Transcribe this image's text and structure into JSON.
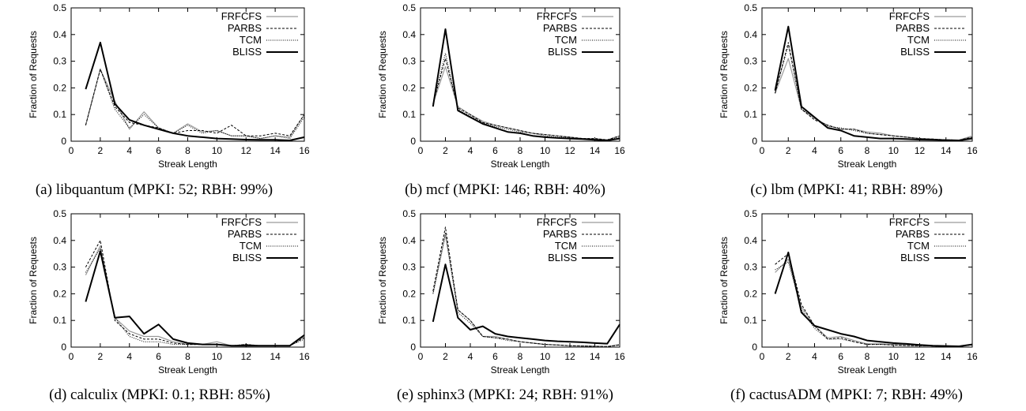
{
  "chart_data": [
    {
      "type": "line",
      "caption": "(a) libquantum (MPKI: 52; RBH: 99%)",
      "xlabel": "Streak Length",
      "ylabel": "Fraction of Requests",
      "xlim": [
        0,
        16
      ],
      "ylim": [
        0,
        0.5
      ],
      "xticks": [
        "0",
        "2",
        "4",
        "6",
        "8",
        "10",
        "12",
        "14",
        "16"
      ],
      "yticks": [
        "0",
        "0.1",
        "0.2",
        "0.3",
        "0.4",
        "0.5"
      ],
      "legend_position": "top-right",
      "grid": false,
      "x": [
        1,
        2,
        3,
        4,
        5,
        6,
        7,
        8,
        9,
        10,
        11,
        12,
        13,
        14,
        15,
        16
      ],
      "series": [
        {
          "name": "FRFCFS",
          "values": [
            0.06,
            0.27,
            0.15,
            0.045,
            0.11,
            0.05,
            0.03,
            0.065,
            0.035,
            0.04,
            0.02,
            0.02,
            0.01,
            0.02,
            0.015,
            0.1
          ]
        },
        {
          "name": "PARBS",
          "values": [
            0.06,
            0.27,
            0.13,
            0.07,
            0.06,
            0.05,
            0.03,
            0.04,
            0.04,
            0.03,
            0.06,
            0.02,
            0.02,
            0.03,
            0.02,
            0.1
          ]
        },
        {
          "name": "TCM",
          "values": [
            0.06,
            0.27,
            0.12,
            0.05,
            0.1,
            0.05,
            0.03,
            0.06,
            0.03,
            0.04,
            0.02,
            0.02,
            0.01,
            0.02,
            0.01,
            0.09
          ]
        },
        {
          "name": "BLISS",
          "values": [
            0.195,
            0.37,
            0.14,
            0.08,
            0.06,
            0.045,
            0.03,
            0.02,
            0.015,
            0.01,
            0.008,
            0.006,
            0.005,
            0.005,
            0.003,
            0.015
          ]
        }
      ]
    },
    {
      "type": "line",
      "caption": "(b) mcf (MPKI: 146; RBH: 40%)",
      "xlabel": "Streak Length",
      "ylabel": "Fraction of Requests",
      "xlim": [
        0,
        16
      ],
      "ylim": [
        0,
        0.5
      ],
      "xticks": [
        "0",
        "2",
        "4",
        "6",
        "8",
        "10",
        "12",
        "14",
        "16"
      ],
      "yticks": [
        "0",
        "0.1",
        "0.2",
        "0.3",
        "0.4",
        "0.5"
      ],
      "legend_position": "top-right",
      "grid": false,
      "x": [
        1,
        2,
        3,
        4,
        5,
        6,
        7,
        8,
        9,
        10,
        11,
        12,
        13,
        14,
        15,
        16
      ],
      "series": [
        {
          "name": "FRFCFS",
          "values": [
            0.14,
            0.28,
            0.13,
            0.1,
            0.075,
            0.06,
            0.05,
            0.04,
            0.03,
            0.025,
            0.02,
            0.015,
            0.01,
            0.01,
            0.005,
            0.02
          ]
        },
        {
          "name": "PARBS",
          "values": [
            0.14,
            0.31,
            0.125,
            0.1,
            0.07,
            0.06,
            0.05,
            0.04,
            0.03,
            0.025,
            0.02,
            0.015,
            0.01,
            0.01,
            0.005,
            0.02
          ]
        },
        {
          "name": "TCM",
          "values": [
            0.14,
            0.33,
            0.12,
            0.095,
            0.07,
            0.055,
            0.045,
            0.035,
            0.03,
            0.02,
            0.015,
            0.015,
            0.01,
            0.005,
            0.005,
            0.015
          ]
        },
        {
          "name": "BLISS",
          "values": [
            0.13,
            0.42,
            0.115,
            0.09,
            0.065,
            0.05,
            0.035,
            0.03,
            0.02,
            0.015,
            0.012,
            0.01,
            0.008,
            0.005,
            0.003,
            0.01
          ]
        }
      ]
    },
    {
      "type": "line",
      "caption": "(c) lbm (MPKI: 41; RBH: 89%)",
      "xlabel": "Streak Length",
      "ylabel": "Fraction of Requests",
      "xlim": [
        0,
        16
      ],
      "ylim": [
        0,
        0.5
      ],
      "xticks": [
        "0",
        "2",
        "4",
        "6",
        "8",
        "10",
        "12",
        "14",
        "16"
      ],
      "yticks": [
        "0",
        "0.1",
        "0.2",
        "0.3",
        "0.4",
        "0.5"
      ],
      "legend_position": "top-right",
      "grid": false,
      "x": [
        1,
        2,
        3,
        4,
        5,
        6,
        7,
        8,
        9,
        10,
        11,
        12,
        13,
        14,
        15,
        16
      ],
      "series": [
        {
          "name": "FRFCFS",
          "values": [
            0.18,
            0.31,
            0.12,
            0.085,
            0.06,
            0.045,
            0.045,
            0.035,
            0.03,
            0.02,
            0.015,
            0.01,
            0.008,
            0.005,
            0.004,
            0.02
          ]
        },
        {
          "name": "PARBS",
          "values": [
            0.18,
            0.37,
            0.12,
            0.08,
            0.06,
            0.045,
            0.045,
            0.03,
            0.025,
            0.02,
            0.015,
            0.01,
            0.008,
            0.005,
            0.004,
            0.015
          ]
        },
        {
          "name": "TCM",
          "values": [
            0.18,
            0.36,
            0.12,
            0.09,
            0.055,
            0.05,
            0.04,
            0.03,
            0.025,
            0.02,
            0.015,
            0.01,
            0.008,
            0.005,
            0.004,
            0.015
          ]
        },
        {
          "name": "BLISS",
          "values": [
            0.19,
            0.43,
            0.13,
            0.09,
            0.05,
            0.04,
            0.02,
            0.015,
            0.01,
            0.01,
            0.008,
            0.006,
            0.005,
            0.004,
            0.003,
            0.01
          ]
        }
      ]
    },
    {
      "type": "line",
      "caption": "(d) calculix (MPKI: 0.1; RBH: 85%)",
      "xlabel": "Streak Length",
      "ylabel": "Fraction of Requests",
      "xlim": [
        0,
        16
      ],
      "ylim": [
        0,
        0.5
      ],
      "xticks": [
        "0",
        "2",
        "4",
        "6",
        "8",
        "10",
        "12",
        "14",
        "16"
      ],
      "yticks": [
        "0",
        "0.1",
        "0.2",
        "0.3",
        "0.4",
        "0.5"
      ],
      "legend_position": "top-right",
      "grid": false,
      "x": [
        1,
        2,
        3,
        4,
        5,
        6,
        7,
        8,
        9,
        10,
        11,
        12,
        13,
        14,
        15,
        16
      ],
      "series": [
        {
          "name": "FRFCFS",
          "values": [
            0.27,
            0.38,
            0.11,
            0.06,
            0.04,
            0.04,
            0.02,
            0.01,
            0.01,
            0.02,
            0.005,
            0.01,
            0.005,
            0.005,
            0.005,
            0.04
          ]
        },
        {
          "name": "PARBS",
          "values": [
            0.3,
            0.4,
            0.1,
            0.05,
            0.03,
            0.03,
            0.015,
            0.01,
            0.01,
            0.01,
            0.005,
            0.01,
            0.005,
            0.005,
            0.005,
            0.035
          ]
        },
        {
          "name": "TCM",
          "values": [
            0.28,
            0.37,
            0.11,
            0.04,
            0.02,
            0.02,
            0.01,
            0.01,
            0.01,
            0.01,
            0.005,
            0.01,
            0.005,
            0.005,
            0.005,
            0.03
          ]
        },
        {
          "name": "BLISS",
          "values": [
            0.17,
            0.36,
            0.11,
            0.115,
            0.05,
            0.085,
            0.03,
            0.015,
            0.01,
            0.01,
            0.005,
            0.005,
            0.005,
            0.005,
            0.005,
            0.045
          ]
        }
      ]
    },
    {
      "type": "line",
      "caption": "(e) sphinx3 (MPKI: 24; RBH: 91%)",
      "xlabel": "Streak Length",
      "ylabel": "Fraction of Requests",
      "xlim": [
        0,
        16
      ],
      "ylim": [
        0,
        0.5
      ],
      "xticks": [
        "0",
        "2",
        "4",
        "6",
        "8",
        "10",
        "12",
        "14",
        "16"
      ],
      "yticks": [
        "0",
        "0.1",
        "0.2",
        "0.3",
        "0.4",
        "0.5"
      ],
      "legend_position": "top-right",
      "grid": false,
      "x": [
        1,
        2,
        3,
        4,
        5,
        6,
        7,
        8,
        9,
        10,
        11,
        12,
        13,
        14,
        15,
        16
      ],
      "series": [
        {
          "name": "FRFCFS",
          "values": [
            0.2,
            0.42,
            0.14,
            0.1,
            0.04,
            0.04,
            0.03,
            0.02,
            0.015,
            0.01,
            0.008,
            0.005,
            0.004,
            0.003,
            0.002,
            0.01
          ]
        },
        {
          "name": "PARBS",
          "values": [
            0.21,
            0.45,
            0.14,
            0.1,
            0.04,
            0.035,
            0.03,
            0.02,
            0.015,
            0.01,
            0.008,
            0.005,
            0.004,
            0.003,
            0.002,
            0.008
          ]
        },
        {
          "name": "TCM",
          "values": [
            0.2,
            0.43,
            0.13,
            0.09,
            0.04,
            0.035,
            0.025,
            0.02,
            0.015,
            0.01,
            0.008,
            0.005,
            0.004,
            0.003,
            0.002,
            0.008
          ]
        },
        {
          "name": "BLISS",
          "values": [
            0.095,
            0.31,
            0.11,
            0.065,
            0.078,
            0.05,
            0.04,
            0.035,
            0.03,
            0.025,
            0.022,
            0.02,
            0.018,
            0.015,
            0.013,
            0.085
          ]
        }
      ]
    },
    {
      "type": "line",
      "caption": "(f) cactusADM (MPKI: 7; RBH: 49%)",
      "xlabel": "Streak Length",
      "ylabel": "Fraction of Requests",
      "xlim": [
        0,
        16
      ],
      "ylim": [
        0,
        0.5
      ],
      "xticks": [
        "0",
        "2",
        "4",
        "6",
        "8",
        "10",
        "12",
        "14",
        "16"
      ],
      "yticks": [
        "0",
        "0.1",
        "0.2",
        "0.3",
        "0.4",
        "0.5"
      ],
      "legend_position": "top-right",
      "grid": false,
      "x": [
        1,
        2,
        3,
        4,
        5,
        6,
        7,
        8,
        9,
        10,
        11,
        12,
        13,
        14,
        15,
        16
      ],
      "series": [
        {
          "name": "FRFCFS",
          "values": [
            0.28,
            0.33,
            0.15,
            0.08,
            0.035,
            0.04,
            0.025,
            0.012,
            0.012,
            0.01,
            0.008,
            0.006,
            0.005,
            0.004,
            0.003,
            0.01
          ]
        },
        {
          "name": "PARBS",
          "values": [
            0.31,
            0.35,
            0.16,
            0.08,
            0.03,
            0.035,
            0.02,
            0.01,
            0.01,
            0.008,
            0.006,
            0.005,
            0.004,
            0.003,
            0.003,
            0.008
          ]
        },
        {
          "name": "TCM",
          "values": [
            0.29,
            0.32,
            0.14,
            0.07,
            0.03,
            0.03,
            0.02,
            0.01,
            0.01,
            0.008,
            0.006,
            0.005,
            0.004,
            0.003,
            0.003,
            0.008
          ]
        },
        {
          "name": "BLISS",
          "values": [
            0.2,
            0.355,
            0.13,
            0.08,
            0.065,
            0.05,
            0.04,
            0.025,
            0.02,
            0.015,
            0.012,
            0.008,
            0.005,
            0.004,
            0.003,
            0.01
          ]
        }
      ]
    }
  ]
}
